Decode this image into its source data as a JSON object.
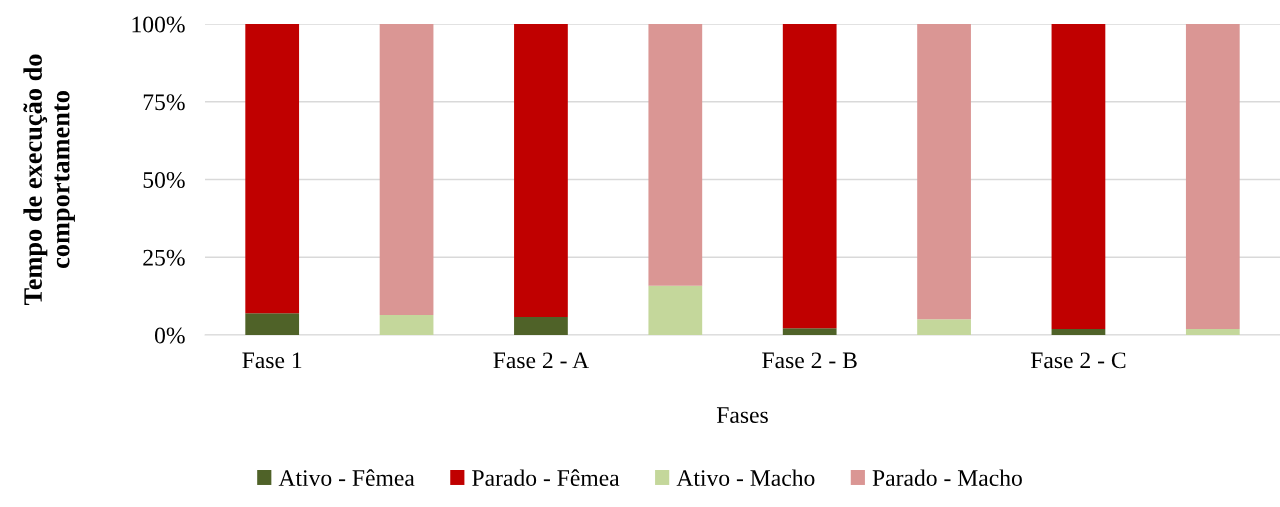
{
  "chart_data": {
    "type": "bar",
    "stacked": true,
    "xlabel": "Fases",
    "ylabel": "Tempo de execução do comportamento",
    "categories": [
      "Fase 1",
      null,
      "Fase 2 - A",
      null,
      "Fase 2 - B",
      null,
      "Fase 2 - C",
      null
    ],
    "series": [
      {
        "name": "Ativo - Fêmea",
        "color": "#4f6228",
        "values": [
          7,
          null,
          5.8,
          null,
          2.2,
          null,
          1.9,
          null
        ]
      },
      {
        "name": "Parado - Fêmea",
        "color": "#c00000",
        "values": [
          93,
          null,
          94.2,
          null,
          97.8,
          null,
          98.1,
          null
        ]
      },
      {
        "name": "Ativo - Macho",
        "color": "#c4d79b",
        "values": [
          null,
          6.4,
          null,
          15.8,
          null,
          5.1,
          null,
          1.9
        ]
      },
      {
        "name": "Parado - Macho",
        "color": "#da9694",
        "values": [
          null,
          93.6,
          null,
          84.2,
          null,
          94.9,
          null,
          98.1
        ]
      }
    ],
    "ylim": [
      0,
      100
    ],
    "yticks": [
      {
        "value": 0,
        "label": "0%"
      },
      {
        "value": 25,
        "label": "25%"
      },
      {
        "value": 50,
        "label": "50%"
      },
      {
        "value": 75,
        "label": "75%"
      },
      {
        "value": 100,
        "label": "100%"
      }
    ],
    "grid": "y",
    "legend": "bottom"
  }
}
